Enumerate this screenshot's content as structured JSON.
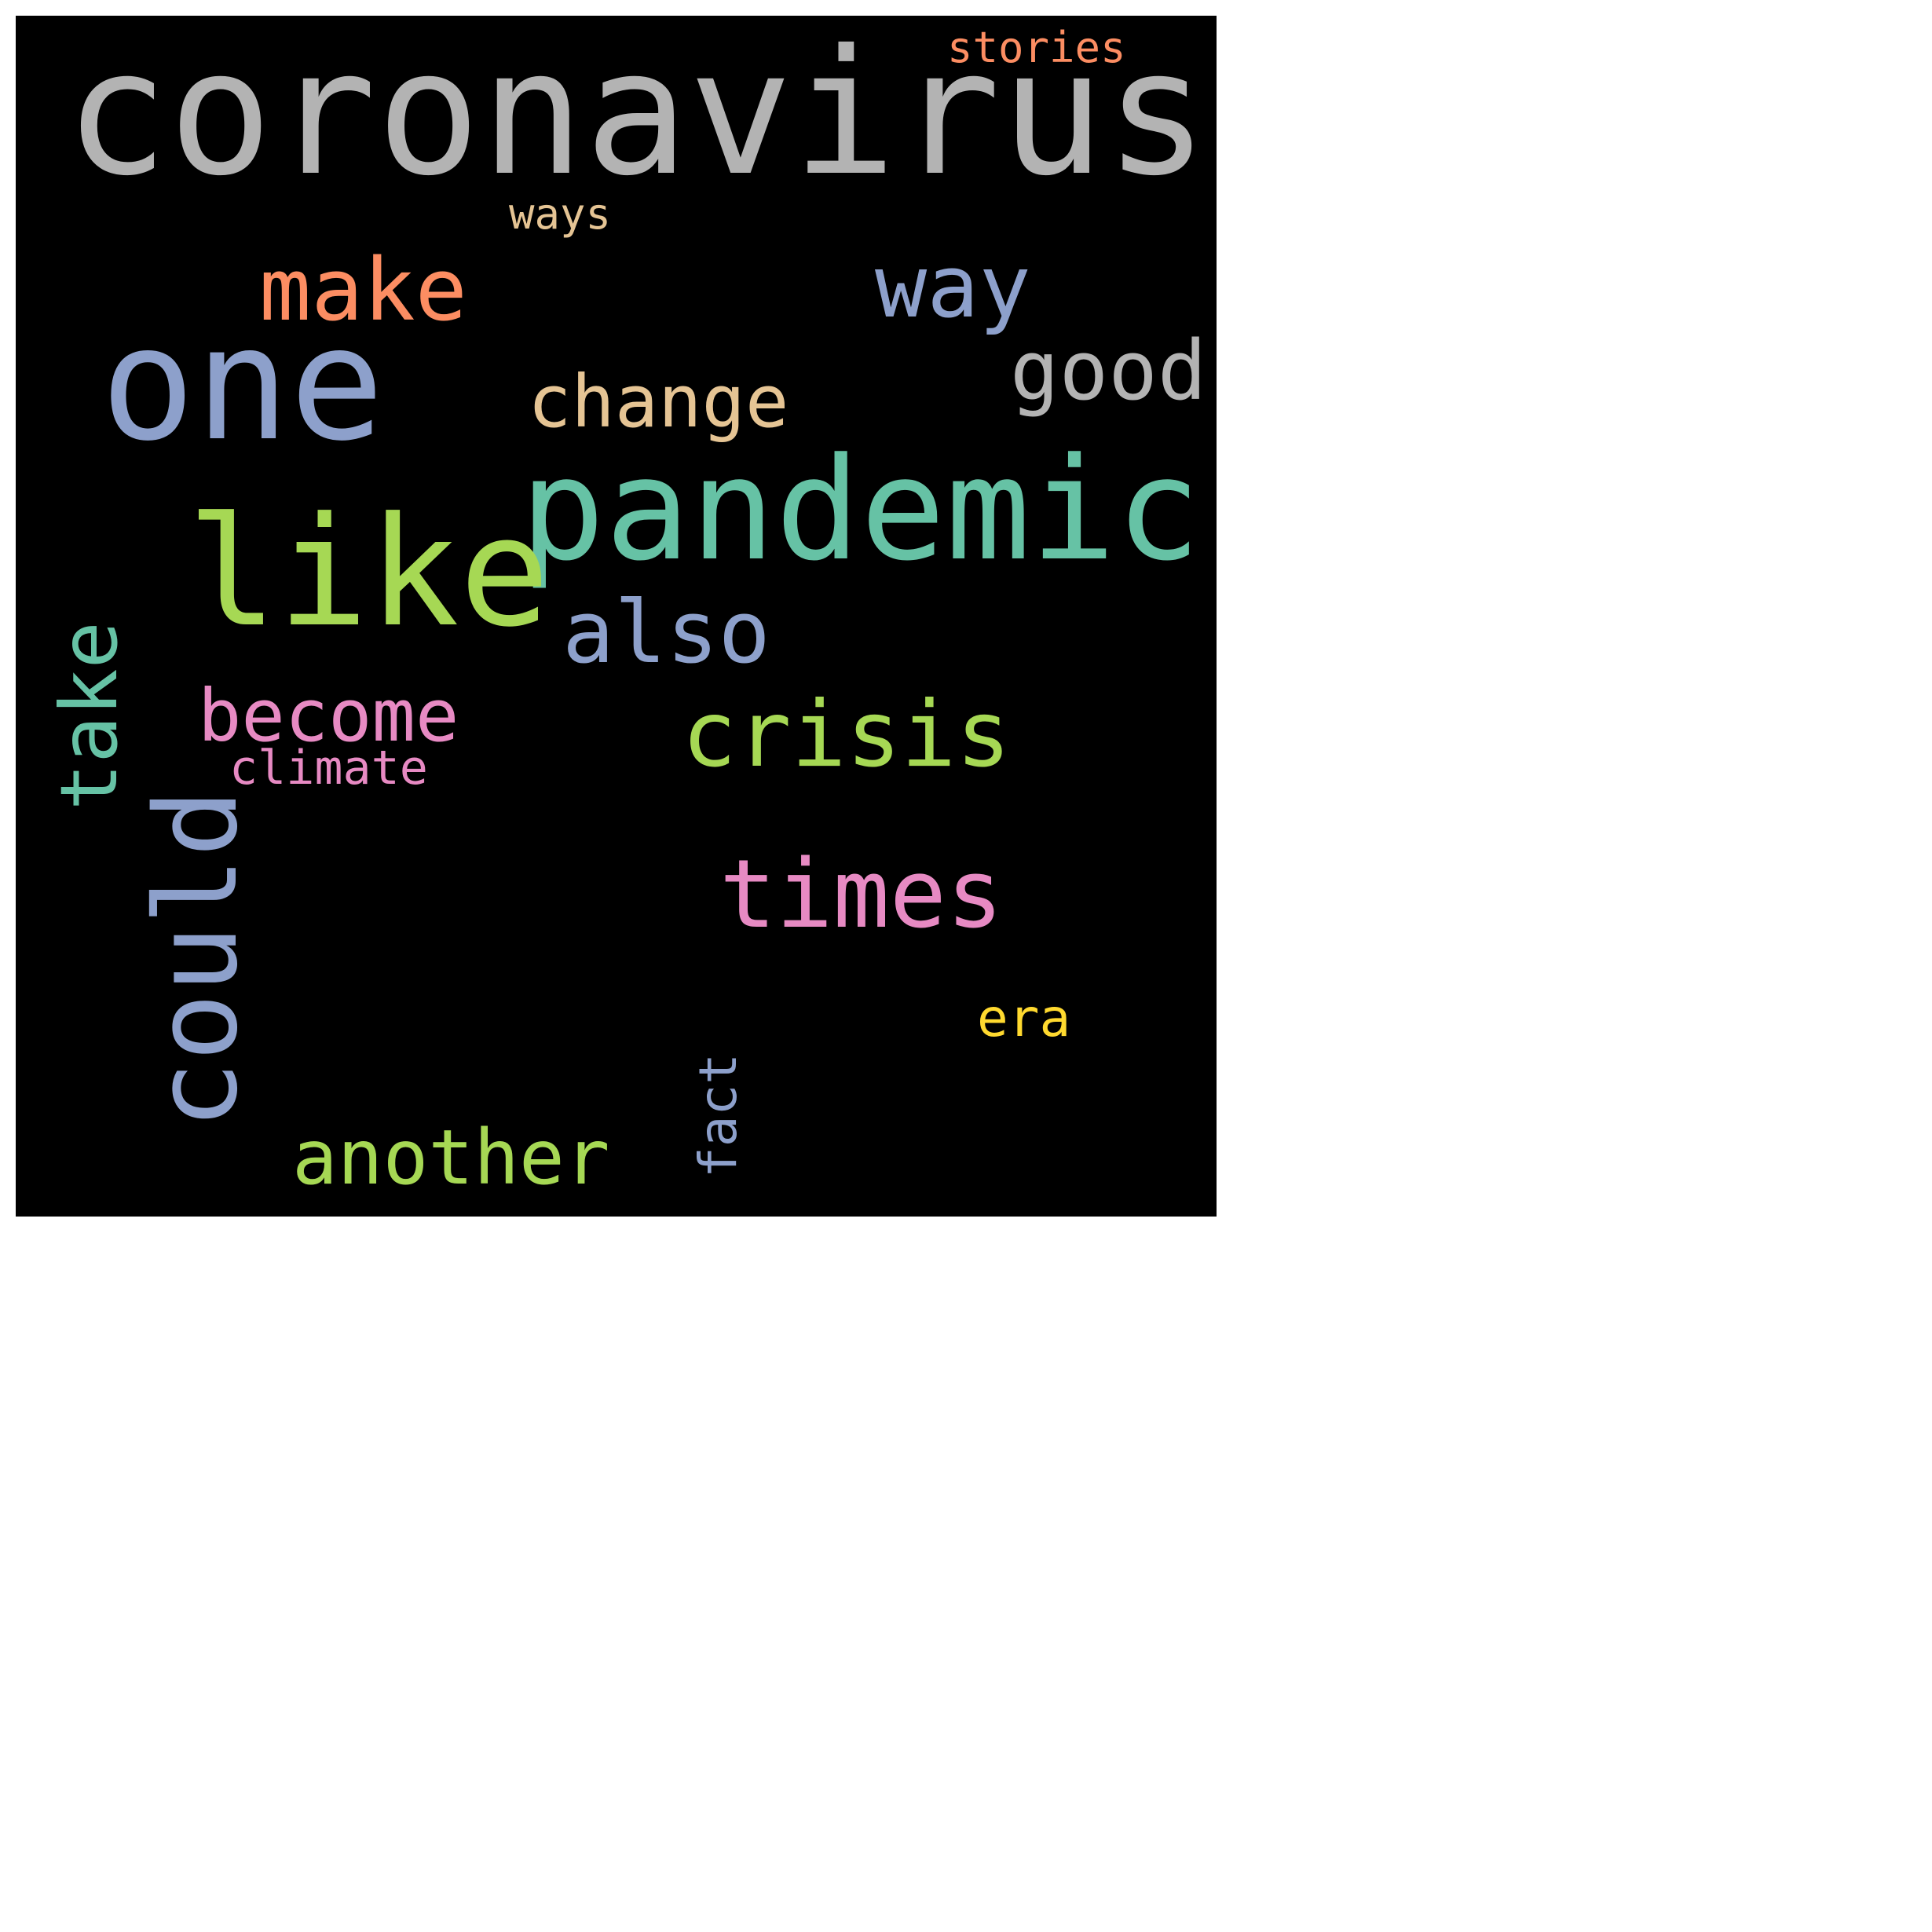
{
  "words": [
    {
      "key": "coronavirus",
      "text": "coronavirus",
      "color": "#b3b3b3"
    },
    {
      "key": "stories",
      "text": "stories",
      "color": "#fc8d62"
    },
    {
      "key": "ways",
      "text": "ways",
      "color": "#e5c494"
    },
    {
      "key": "make",
      "text": "make",
      "color": "#fc8d62"
    },
    {
      "key": "way",
      "text": "way",
      "color": "#8da0cb"
    },
    {
      "key": "one",
      "text": "one",
      "color": "#8da0cb"
    },
    {
      "key": "good",
      "text": "good",
      "color": "#b3b3b3"
    },
    {
      "key": "change",
      "text": "change",
      "color": "#e5c494"
    },
    {
      "key": "pandemic",
      "text": "pandemic",
      "color": "#66c2a5"
    },
    {
      "key": "like",
      "text": "like",
      "color": "#a6d854"
    },
    {
      "key": "also",
      "text": "also",
      "color": "#8da0cb"
    },
    {
      "key": "take",
      "text": "take",
      "color": "#66c2a5"
    },
    {
      "key": "become",
      "text": "become",
      "color": "#e78ac3"
    },
    {
      "key": "crisis",
      "text": "crisis",
      "color": "#a6d854"
    },
    {
      "key": "climate",
      "text": "climate",
      "color": "#e78ac3"
    },
    {
      "key": "could",
      "text": "could",
      "color": "#8da0cb"
    },
    {
      "key": "times",
      "text": "times",
      "color": "#e78ac3"
    },
    {
      "key": "era",
      "text": "era",
      "color": "#ffd92f"
    },
    {
      "key": "fact",
      "text": "fact",
      "color": "#8da0cb"
    },
    {
      "key": "another",
      "text": "another",
      "color": "#a6d854"
    }
  ]
}
